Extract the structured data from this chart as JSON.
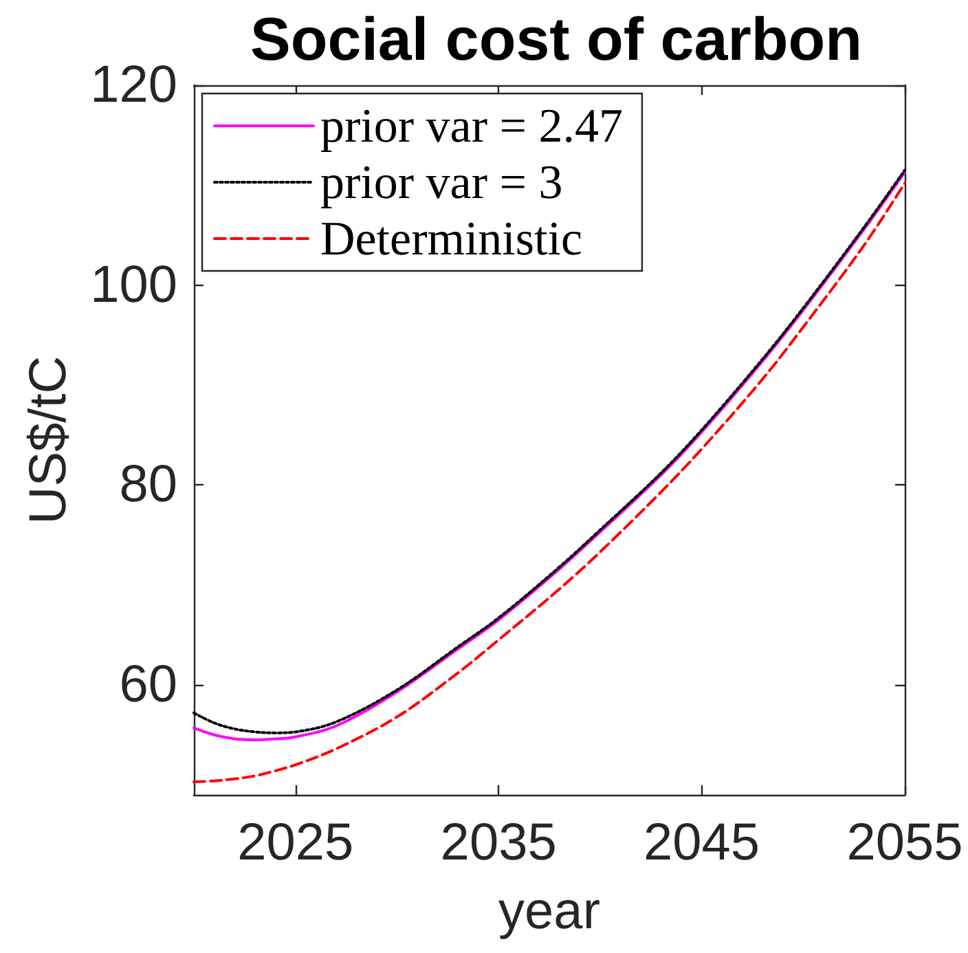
{
  "chart_data": {
    "type": "line",
    "title": "Social cost of carbon",
    "xlabel": "year",
    "ylabel": "US$/tC",
    "x": [
      2020,
      2021,
      2022,
      2023,
      2024,
      2025,
      2027,
      2030,
      2033,
      2035,
      2038,
      2040,
      2043,
      2045,
      2048,
      2050,
      2053,
      2055
    ],
    "series": [
      {
        "name": "prior var = 2.47",
        "color": "#ff00ff",
        "line_style": "solid",
        "values": [
          55.7,
          55.0,
          54.6,
          54.5,
          54.6,
          54.8,
          55.9,
          59.3,
          63.6,
          66.5,
          71.6,
          75.3,
          81.0,
          85.3,
          92.4,
          97.5,
          105.6,
          111.3
        ]
      },
      {
        "name": "prior var = 3",
        "color": "#000000",
        "line_style": "dotted",
        "values": [
          57.2,
          56.2,
          55.6,
          55.3,
          55.2,
          55.3,
          56.3,
          59.5,
          63.8,
          66.7,
          71.8,
          75.5,
          81.2,
          85.5,
          92.6,
          97.7,
          105.8,
          111.5
        ]
      },
      {
        "name": "Deterministic",
        "color": "#ff0000",
        "line_style": "dashed",
        "values": [
          50.3,
          50.4,
          50.6,
          50.9,
          51.4,
          52.0,
          53.6,
          56.8,
          61.2,
          64.5,
          69.6,
          73.3,
          79.3,
          83.6,
          90.6,
          95.8,
          104.0,
          110.2
        ]
      }
    ],
    "xlim": [
      2020,
      2055
    ],
    "xticks": [
      2025,
      2035,
      2045,
      2055
    ],
    "ylim": [
      49,
      120
    ],
    "yticks": [
      60,
      80,
      100,
      120
    ],
    "grid": false,
    "legend": "top left",
    "marker": "none"
  }
}
